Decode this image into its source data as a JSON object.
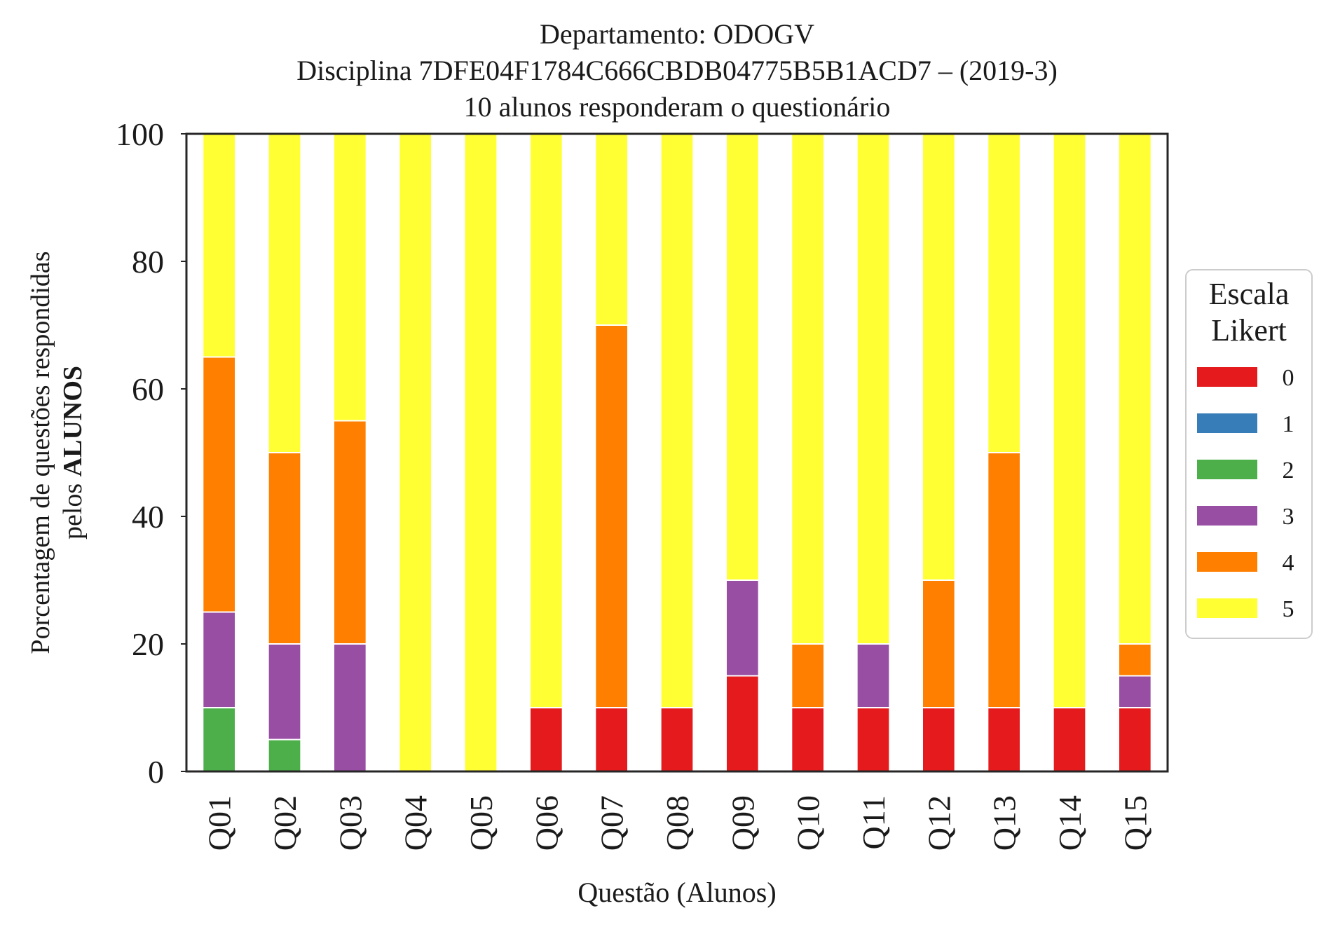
{
  "chart_data": {
    "type": "bar",
    "stacked": true,
    "title": [
      "Departamento: ODOGV",
      "Disciplina 7DFE04F1784C666CBDB04775B5B1ACD7 – (2019-3)",
      "10 alunos responderam o questionário"
    ],
    "xlabel": "Questão (Alunos)",
    "ylabel_line1": "Porcentagem de questões respondidas",
    "ylabel_line2_prefix": "pelos ",
    "ylabel_line2_bold": "ALUNOS",
    "ylim": [
      0,
      100
    ],
    "yticks": [
      0,
      20,
      40,
      60,
      80,
      100
    ],
    "grid": false,
    "legend": {
      "title": [
        "Escala",
        "Likert"
      ],
      "placement": "right-center"
    },
    "categories": [
      "Q01",
      "Q02",
      "Q03",
      "Q04",
      "Q05",
      "Q06",
      "Q07",
      "Q08",
      "Q09",
      "Q10",
      "Q11",
      "Q12",
      "Q13",
      "Q14",
      "Q15"
    ],
    "series": [
      {
        "name": "0",
        "color": "#e41a1c",
        "values": [
          0,
          0,
          0,
          0,
          0,
          10,
          10,
          10,
          15,
          10,
          10,
          10,
          10,
          10,
          10
        ]
      },
      {
        "name": "1",
        "color": "#377eb8",
        "values": [
          0,
          0,
          0,
          0,
          0,
          0,
          0,
          0,
          0,
          0,
          0,
          0,
          0,
          0,
          0
        ]
      },
      {
        "name": "2",
        "color": "#4daf4a",
        "values": [
          10,
          5,
          0,
          0,
          0,
          0,
          0,
          0,
          0,
          0,
          0,
          0,
          0,
          0,
          0
        ]
      },
      {
        "name": "3",
        "color": "#984ea3",
        "values": [
          15,
          15,
          20,
          0,
          0,
          0,
          0,
          0,
          15,
          0,
          10,
          0,
          0,
          0,
          5
        ]
      },
      {
        "name": "4",
        "color": "#ff7f00",
        "values": [
          40,
          30,
          35,
          0,
          0,
          0,
          60,
          0,
          0,
          10,
          0,
          20,
          40,
          0,
          5
        ]
      },
      {
        "name": "5",
        "color": "#ffff33",
        "values": [
          35,
          50,
          45,
          100,
          100,
          90,
          30,
          90,
          70,
          80,
          80,
          70,
          50,
          90,
          80
        ]
      }
    ]
  }
}
